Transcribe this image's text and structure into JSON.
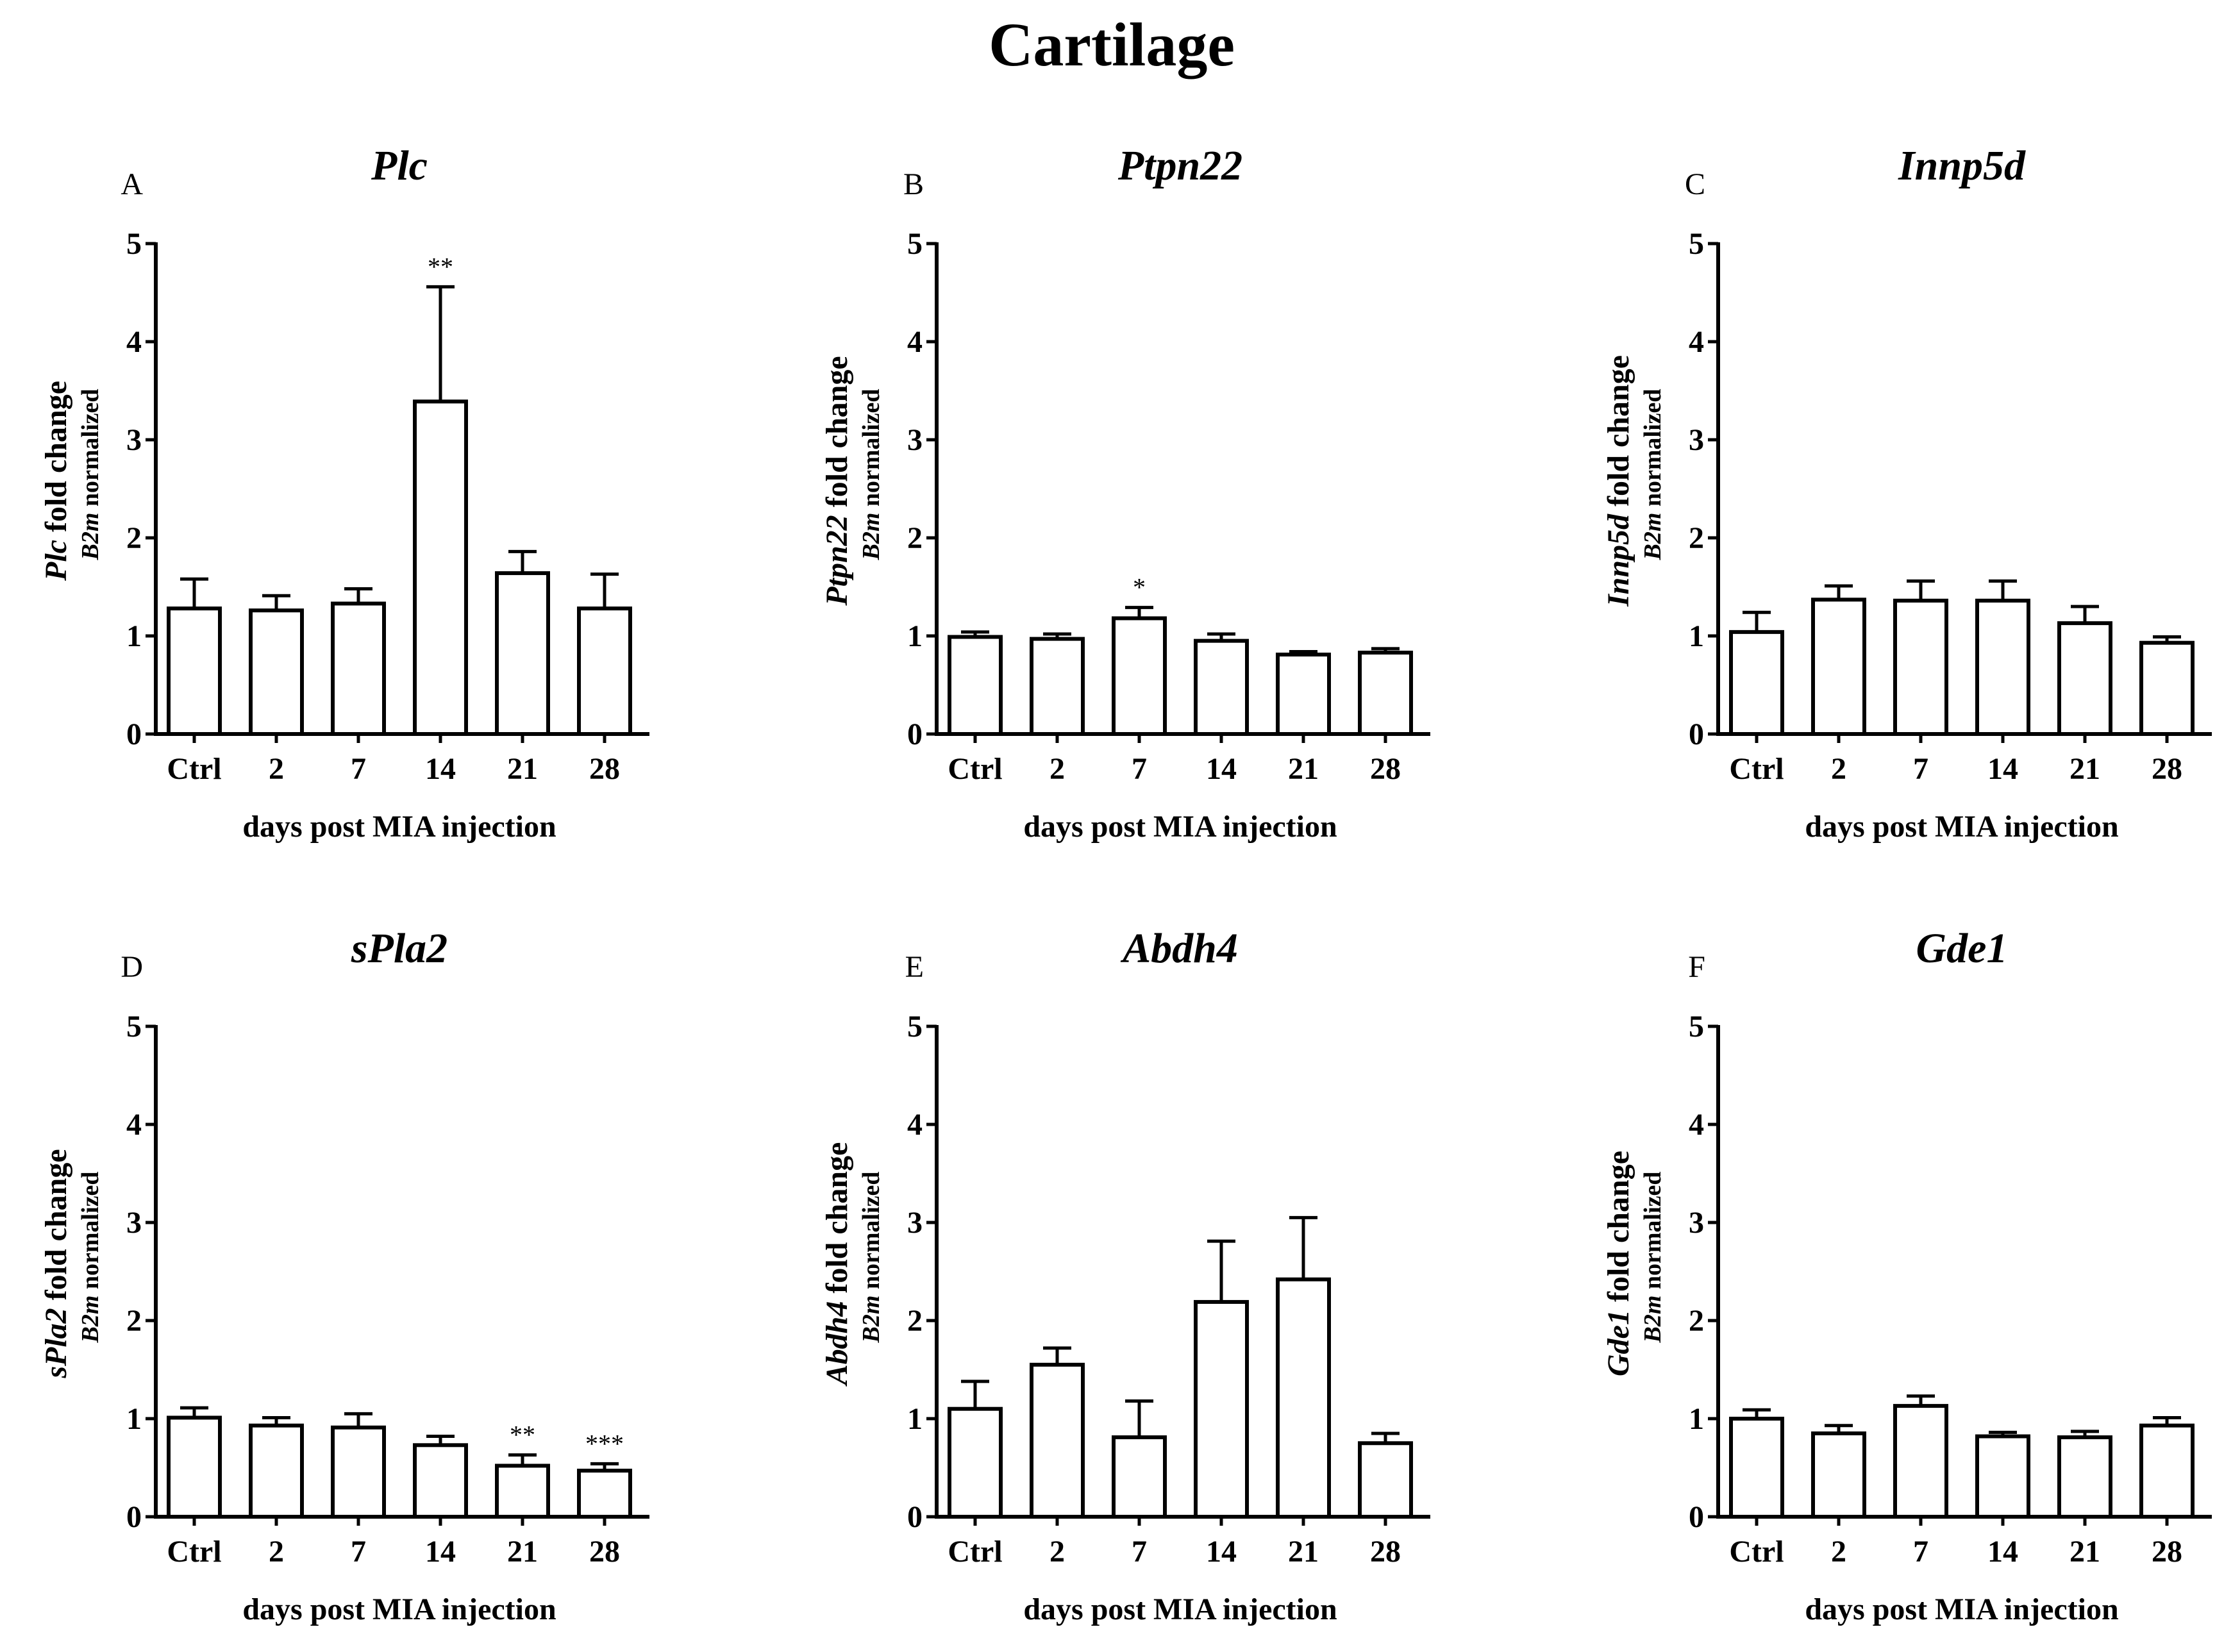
{
  "figure_title": "Cartilage",
  "chart_data": [
    {
      "type": "bar",
      "letter": "A",
      "title": "Plc",
      "ylabel": {
        "gene": "Plc",
        "suffix": "fold change",
        "norm_gene": "B2m",
        "norm_suffix": "normalized"
      },
      "xlabel": "days post MIA injection",
      "categories": [
        "Ctrl",
        "2",
        "7",
        "14",
        "21",
        "28"
      ],
      "values": [
        1.28,
        1.26,
        1.33,
        3.39,
        1.64,
        1.28
      ],
      "errors": [
        0.3,
        0.15,
        0.15,
        1.17,
        0.22,
        0.35
      ],
      "significance": [
        "",
        "",
        "",
        "**",
        "",
        ""
      ],
      "ylim": [
        0,
        5
      ],
      "yticks": [
        "0",
        "1",
        "2",
        "3",
        "4",
        "5"
      ]
    },
    {
      "type": "bar",
      "letter": "B",
      "title": "Ptpn22",
      "ylabel": {
        "gene": "Ptpn22",
        "suffix": "fold change",
        "norm_gene": "B2m",
        "norm_suffix": "normalized"
      },
      "xlabel": "days post MIA injection",
      "categories": [
        "Ctrl",
        "2",
        "7",
        "14",
        "21",
        "28"
      ],
      "values": [
        0.99,
        0.97,
        1.18,
        0.95,
        0.81,
        0.83
      ],
      "errors": [
        0.05,
        0.05,
        0.11,
        0.07,
        0.03,
        0.04
      ],
      "significance": [
        "",
        "",
        "*",
        "",
        "",
        ""
      ],
      "ylim": [
        0,
        5
      ],
      "yticks": [
        "0",
        "1",
        "2",
        "3",
        "4",
        "5"
      ]
    },
    {
      "type": "bar",
      "letter": "C",
      "title": "Innp5d",
      "ylabel": {
        "gene": "Innp5d",
        "suffix": "fold change",
        "norm_gene": "B2m",
        "norm_suffix": "normalized"
      },
      "xlabel": "days post MIA injection",
      "categories": [
        "Ctrl",
        "2",
        "7",
        "14",
        "21",
        "28"
      ],
      "values": [
        1.04,
        1.37,
        1.36,
        1.36,
        1.13,
        0.93
      ],
      "errors": [
        0.2,
        0.14,
        0.2,
        0.2,
        0.17,
        0.06
      ],
      "significance": [
        "",
        "",
        "",
        "",
        "",
        ""
      ],
      "ylim": [
        0,
        5
      ],
      "yticks": [
        "0",
        "1",
        "2",
        "3",
        "4",
        "5"
      ]
    },
    {
      "type": "bar",
      "letter": "D",
      "title": "sPla2",
      "ylabel": {
        "gene": "sPla2",
        "suffix": "fold change",
        "norm_gene": "B2m",
        "norm_suffix": "normalized"
      },
      "xlabel": "days post MIA injection",
      "categories": [
        "Ctrl",
        "2",
        "7",
        "14",
        "21",
        "28"
      ],
      "values": [
        1.01,
        0.93,
        0.91,
        0.73,
        0.52,
        0.47
      ],
      "errors": [
        0.1,
        0.08,
        0.14,
        0.09,
        0.11,
        0.07
      ],
      "significance": [
        "",
        "",
        "",
        "",
        "**",
        "***"
      ],
      "ylim": [
        0,
        5
      ],
      "yticks": [
        "0",
        "1",
        "2",
        "3",
        "4",
        "5"
      ]
    },
    {
      "type": "bar",
      "letter": "E",
      "title": "Abdh4",
      "ylabel": {
        "gene": "Abdh4",
        "suffix": "fold change",
        "norm_gene": "B2m",
        "norm_suffix": "normalized"
      },
      "xlabel": "days post MIA injection",
      "categories": [
        "Ctrl",
        "2",
        "7",
        "14",
        "21",
        "28"
      ],
      "values": [
        1.1,
        1.55,
        0.81,
        2.19,
        2.42,
        0.75
      ],
      "errors": [
        0.28,
        0.17,
        0.37,
        0.62,
        0.63,
        0.1
      ],
      "significance": [
        "",
        "",
        "",
        "",
        "",
        ""
      ],
      "ylim": [
        0,
        5
      ],
      "yticks": [
        "0",
        "1",
        "2",
        "3",
        "4",
        "5"
      ]
    },
    {
      "type": "bar",
      "letter": "F",
      "title": "Gde1",
      "ylabel": {
        "gene": "Gde1",
        "suffix": "fold change",
        "norm_gene": "B2m",
        "norm_suffix": "normalized"
      },
      "xlabel": "days post MIA injection",
      "categories": [
        "Ctrl",
        "2",
        "7",
        "14",
        "21",
        "28"
      ],
      "values": [
        1.0,
        0.85,
        1.13,
        0.82,
        0.81,
        0.93
      ],
      "errors": [
        0.09,
        0.08,
        0.1,
        0.04,
        0.06,
        0.08
      ],
      "significance": [
        "",
        "",
        "",
        "",
        "",
        ""
      ],
      "ylim": [
        0,
        5
      ],
      "yticks": [
        "0",
        "1",
        "2",
        "3",
        "4",
        "5"
      ]
    }
  ]
}
